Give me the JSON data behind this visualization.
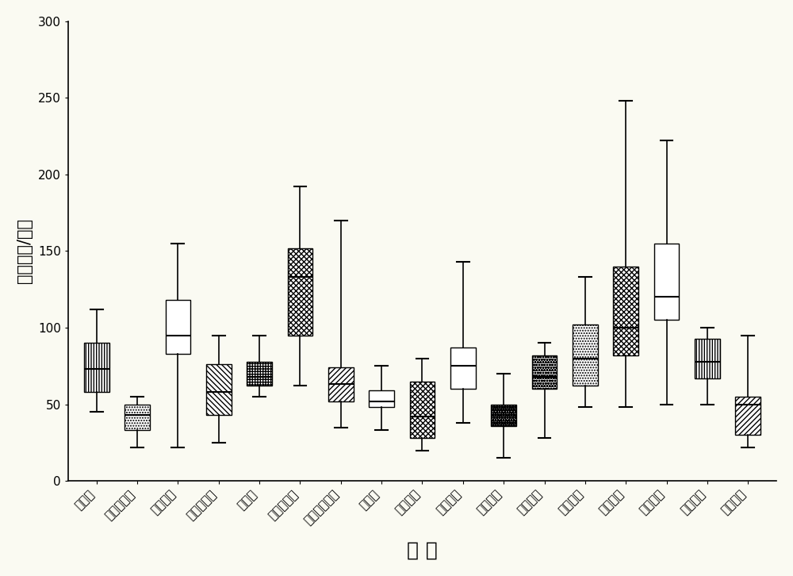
{
  "categories": [
    "未处理",
    "雷公藤红素",
    "粉防己碱",
    "穿心莲内酯",
    "槲果碱",
    "氧化苦参碱",
    "纤细薯蓣皂苷",
    "乌头碱",
    "新乌头碱",
    "次乌头碱",
    "积雪草苷",
    "汉黄芩素",
    "水飞蓟碱",
    "吴茱萸碱",
    "木兰脂素",
    "欧前胡素",
    "滨蒿内酯"
  ],
  "box_stats": [
    {
      "whislo": 45,
      "q1": 58,
      "med": 73,
      "q3": 90,
      "whishi": 112
    },
    {
      "whislo": 22,
      "q1": 33,
      "med": 43,
      "q3": 50,
      "whishi": 55
    },
    {
      "whislo": 22,
      "q1": 83,
      "med": 95,
      "q3": 118,
      "whishi": 155
    },
    {
      "whislo": 25,
      "q1": 43,
      "med": 58,
      "q3": 76,
      "whishi": 95
    },
    {
      "whislo": 55,
      "q1": 62,
      "med": 68,
      "q3": 78,
      "whishi": 95
    },
    {
      "whislo": 62,
      "q1": 95,
      "med": 133,
      "q3": 152,
      "whishi": 192
    },
    {
      "whislo": 35,
      "q1": 52,
      "med": 63,
      "q3": 74,
      "whishi": 170
    },
    {
      "whislo": 33,
      "q1": 48,
      "med": 52,
      "q3": 59,
      "whishi": 75
    },
    {
      "whislo": 20,
      "q1": 28,
      "med": 42,
      "q3": 65,
      "whishi": 80
    },
    {
      "whislo": 38,
      "q1": 60,
      "med": 75,
      "q3": 87,
      "whishi": 143
    },
    {
      "whislo": 15,
      "q1": 36,
      "med": 46,
      "q3": 50,
      "whishi": 70
    },
    {
      "whislo": 28,
      "q1": 60,
      "med": 68,
      "q3": 82,
      "whishi": 90
    },
    {
      "whislo": 48,
      "q1": 62,
      "med": 80,
      "q3": 102,
      "whishi": 133
    },
    {
      "whislo": 48,
      "q1": 82,
      "med": 100,
      "q3": 140,
      "whishi": 248
    },
    {
      "whislo": 50,
      "q1": 105,
      "med": 120,
      "q3": 155,
      "whishi": 222
    },
    {
      "whislo": 50,
      "q1": 67,
      "med": 78,
      "q3": 93,
      "whishi": 100
    },
    {
      "whislo": 22,
      "q1": 30,
      "med": 50,
      "q3": 55,
      "whishi": 95
    }
  ],
  "bgcolor": "#fafaf2",
  "ylabel": "信号数目/细胞",
  "xlabel": "药 物",
  "ylim": [
    0,
    300
  ],
  "yticks": [
    0,
    50,
    100,
    150,
    200,
    250,
    300
  ],
  "ylabel_fontsize": 15,
  "xlabel_fontsize": 18,
  "tick_fontsize": 11
}
